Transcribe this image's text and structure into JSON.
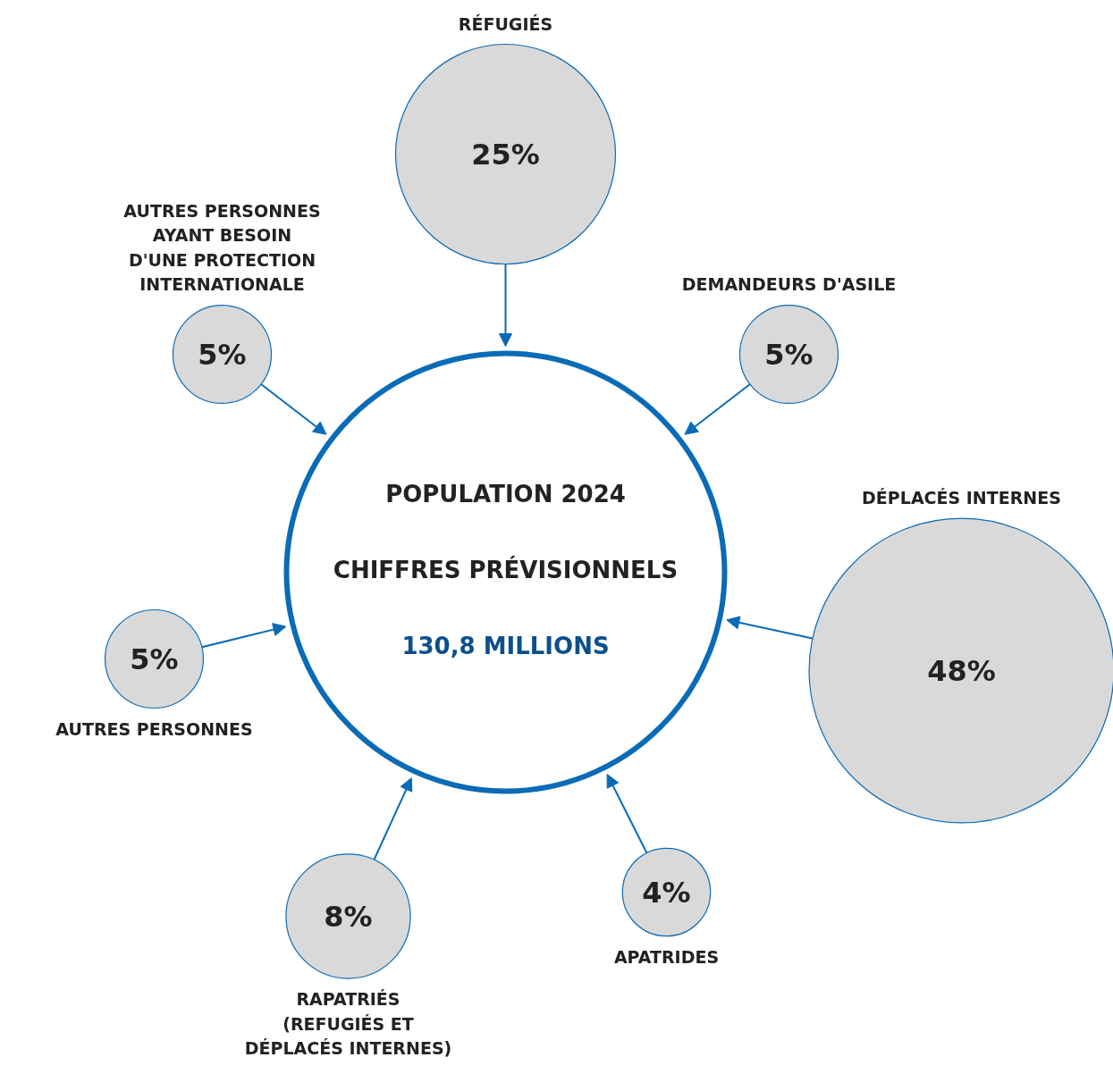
{
  "chart_data": {
    "type": "other",
    "title": "POPULATION 2024",
    "subtitle": "CHIFFRES PRÉVISIONNELS",
    "annotations": [
      "130,8 MILLIONS"
    ],
    "categories": [
      "RÉFUGIÉS",
      "DEMANDEURS D'ASILE",
      "DÉPLACÉS INTERNES",
      "APATRIDES",
      "RAPATRIÉS\n(REFUGIÉS ET\nDÉPLACÉS INTERNES)",
      "AUTRES PERSONNES",
      "AUTRES PERSONNES\nAYANT BESOIN\nD'UNE PROTECTION\nINTERNATIONALE"
    ],
    "values": [
      25,
      5,
      48,
      4,
      8,
      5,
      5
    ],
    "value_labels": [
      "25%",
      "5%",
      "48%",
      "4%",
      "8%",
      "5%",
      "5%"
    ],
    "color": "#d9d9d9"
  }
}
